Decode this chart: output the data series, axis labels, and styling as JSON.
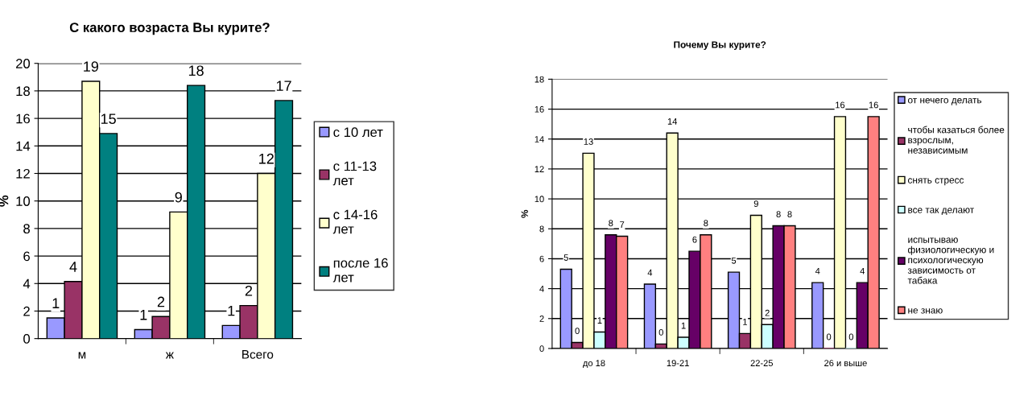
{
  "chart_data": [
    {
      "type": "bar",
      "title": "С какого возраста Вы курите?",
      "ylabel": "%",
      "categories": [
        "м",
        "ж",
        "Всего"
      ],
      "ylim": [
        0,
        20
      ],
      "yticks": [
        0,
        2,
        4,
        6,
        8,
        10,
        12,
        14,
        16,
        18,
        20
      ],
      "grid": "y",
      "legend": "right",
      "series": [
        {
          "name": "с 10 лет",
          "color": "#9999ff",
          "values": [
            1.5,
            0.65,
            0.95
          ],
          "value_labels": [
            "1",
            "1",
            "1"
          ]
        },
        {
          "name": "с 11-13 лет",
          "color": "#993366",
          "values": [
            4.15,
            1.6,
            2.4
          ],
          "value_labels": [
            "4",
            "2",
            "2"
          ]
        },
        {
          "name": "с 14-16 лет",
          "color": "#ffffcc",
          "values": [
            18.7,
            9.2,
            12.0
          ],
          "value_labels": [
            "19",
            "9",
            "12"
          ]
        },
        {
          "name": "после 16 лет",
          "color": "#008080",
          "values": [
            14.9,
            18.4,
            17.3
          ],
          "value_labels": [
            "15",
            "18",
            "17"
          ]
        }
      ]
    },
    {
      "type": "bar",
      "title": "Почему Вы курите?",
      "ylabel": "%",
      "categories": [
        "до 18",
        "19-21",
        "22-25",
        "26 и выше"
      ],
      "ylim": [
        0,
        18
      ],
      "yticks": [
        0,
        2,
        4,
        6,
        8,
        10,
        12,
        14,
        16,
        18
      ],
      "grid": "y",
      "legend": "right",
      "series": [
        {
          "name": "от нечего делать",
          "color": "#9999ff",
          "values": [
            5.3,
            4.3,
            5.1,
            4.4
          ],
          "value_labels": [
            "5",
            "4",
            "5",
            "4"
          ]
        },
        {
          "name": "чтобы казаться более взрослым, независимым",
          "color": "#993366",
          "values": [
            0.4,
            0.3,
            1.0,
            0
          ],
          "value_labels": [
            "0",
            "0",
            "1",
            "0"
          ]
        },
        {
          "name": "снять стресс",
          "color": "#ffffcc",
          "values": [
            13.05,
            14.4,
            8.9,
            15.5
          ],
          "value_labels": [
            "13",
            "14",
            "9",
            "16"
          ]
        },
        {
          "name": "все так делают",
          "color": "#ccffff",
          "values": [
            1.1,
            0.75,
            1.6,
            0
          ],
          "value_labels": [
            "1",
            "1",
            "2",
            "0"
          ]
        },
        {
          "name": "испытываю физиологическую и психологическую зависимость от табака",
          "color": "#660066",
          "values": [
            7.6,
            6.5,
            8.2,
            4.4
          ],
          "value_labels": [
            "8",
            "6",
            "8",
            "4"
          ]
        },
        {
          "name": "не знаю",
          "color": "#ff8080",
          "values": [
            7.5,
            7.6,
            8.2,
            15.5
          ],
          "value_labels": [
            "7",
            "8",
            "8",
            "16"
          ]
        }
      ]
    }
  ]
}
